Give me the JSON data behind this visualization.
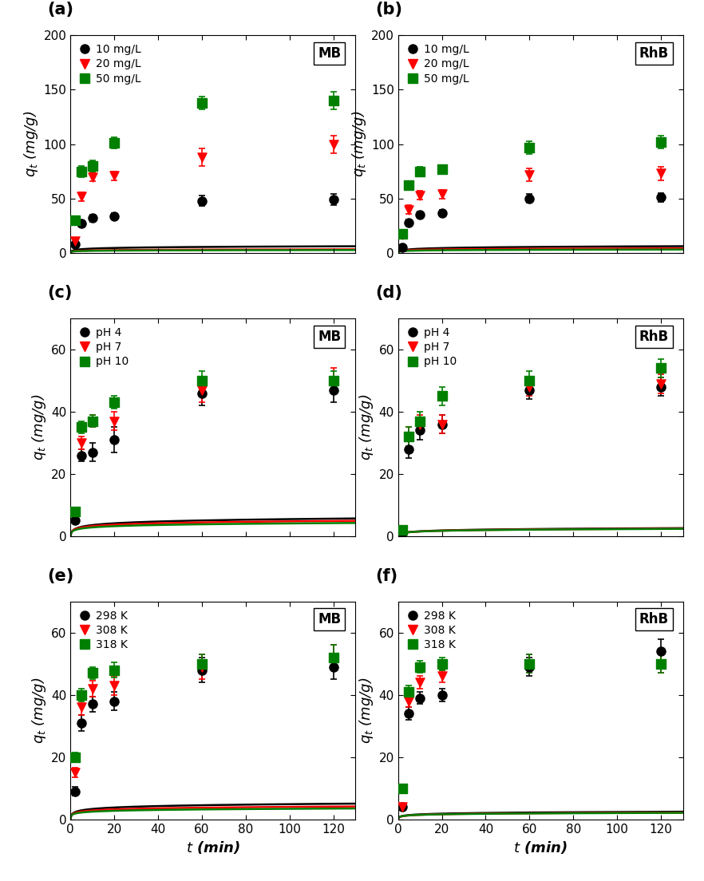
{
  "panels": [
    {
      "label": "(a)",
      "tag": "MB",
      "ylim": [
        0,
        200
      ],
      "yticks": [
        0,
        50,
        100,
        150,
        200
      ],
      "ylabel": "$q_t$ (mg/g)",
      "show_xlabel": false,
      "series": [
        {
          "name": "10 mg/L",
          "color": "black",
          "marker": "o",
          "t": [
            2,
            5,
            10,
            20,
            60,
            120
          ],
          "q": [
            8,
            27,
            32,
            34,
            48,
            49
          ],
          "yerr": [
            1.5,
            3,
            3,
            3,
            5,
            5
          ],
          "elovich_a": 11.5,
          "elovich_b": 1.2
        },
        {
          "name": "20 mg/L",
          "color": "red",
          "marker": "v",
          "t": [
            2,
            5,
            10,
            20,
            60,
            120
          ],
          "q": [
            11,
            52,
            70,
            71,
            88,
            100
          ],
          "yerr": [
            2,
            4,
            4,
            4,
            8,
            8
          ],
          "elovich_a": 17.0,
          "elovich_b": 2.5
        },
        {
          "name": "50 mg/L",
          "color": "green",
          "marker": "s",
          "t": [
            2,
            5,
            10,
            20,
            60,
            120
          ],
          "q": [
            30,
            75,
            80,
            101,
            138,
            140
          ],
          "yerr": [
            3,
            5,
            5,
            5,
            6,
            8
          ],
          "elovich_a": 38.0,
          "elovich_b": 3.5
        }
      ]
    },
    {
      "label": "(b)",
      "tag": "RhB",
      "ylim": [
        0,
        200
      ],
      "yticks": [
        0,
        50,
        100,
        150,
        200
      ],
      "ylabel": "$q_t$ (mg/g)",
      "show_xlabel": false,
      "series": [
        {
          "name": "10 mg/L",
          "color": "black",
          "marker": "o",
          "t": [
            2,
            5,
            10,
            20,
            60,
            120
          ],
          "q": [
            5,
            28,
            35,
            37,
            50,
            51
          ],
          "yerr": [
            1,
            3,
            3,
            3,
            4,
            4
          ],
          "elovich_a": 7.0,
          "elovich_b": 1.1
        },
        {
          "name": "20 mg/L",
          "color": "red",
          "marker": "v",
          "t": [
            2,
            5,
            10,
            20,
            60,
            120
          ],
          "q": [
            17,
            40,
            53,
            54,
            72,
            73
          ],
          "yerr": [
            2,
            4,
            4,
            4,
            6,
            6
          ],
          "elovich_a": 20.0,
          "elovich_b": 2.0
        },
        {
          "name": "50 mg/L",
          "color": "green",
          "marker": "s",
          "t": [
            2,
            5,
            10,
            20,
            60,
            120
          ],
          "q": [
            18,
            62,
            75,
            77,
            97,
            102
          ],
          "yerr": [
            2,
            4,
            4,
            4,
            6,
            6
          ],
          "elovich_a": 25.0,
          "elovich_b": 2.8
        }
      ]
    },
    {
      "label": "(c)",
      "tag": "MB",
      "ylim": [
        0,
        70
      ],
      "yticks": [
        0,
        20,
        40,
        60
      ],
      "ylabel": "$q_t$ (mg/g)",
      "show_xlabel": false,
      "series": [
        {
          "name": "pH 4",
          "color": "black",
          "marker": "o",
          "t": [
            2,
            5,
            10,
            20,
            60,
            120
          ],
          "q": [
            5,
            26,
            27,
            31,
            46,
            47
          ],
          "yerr": [
            1,
            2,
            3,
            4,
            4,
            4
          ],
          "elovich_a": 6.0,
          "elovich_b": 1.2
        },
        {
          "name": "pH 7",
          "color": "red",
          "marker": "v",
          "t": [
            2,
            5,
            10,
            20,
            60,
            120
          ],
          "q": [
            8,
            30,
            37,
            37,
            47,
            50
          ],
          "yerr": [
            1,
            2,
            2,
            3,
            4,
            4
          ],
          "elovich_a": 8.5,
          "elovich_b": 1.5
        },
        {
          "name": "pH 10",
          "color": "green",
          "marker": "s",
          "t": [
            2,
            5,
            10,
            20,
            60,
            120
          ],
          "q": [
            8,
            35,
            37,
            43,
            50,
            50
          ],
          "yerr": [
            1,
            2,
            2,
            2,
            3,
            3
          ],
          "elovich_a": 9.0,
          "elovich_b": 1.8
        }
      ]
    },
    {
      "label": "(d)",
      "tag": "RhB",
      "ylim": [
        0,
        70
      ],
      "yticks": [
        0,
        20,
        40,
        60
      ],
      "ylabel": "$q_t$ (mg/g)",
      "show_xlabel": false,
      "series": [
        {
          "name": "pH 4",
          "color": "black",
          "marker": "o",
          "t": [
            2,
            5,
            10,
            20,
            60,
            120
          ],
          "q": [
            1,
            28,
            34,
            36,
            47,
            48
          ],
          "yerr": [
            1,
            3,
            3,
            3,
            3,
            3
          ],
          "elovich_a": 2.0,
          "elovich_b": 2.5
        },
        {
          "name": "pH 7",
          "color": "red",
          "marker": "v",
          "t": [
            2,
            5,
            10,
            20,
            60,
            120
          ],
          "q": [
            2,
            32,
            36,
            36,
            48,
            49
          ],
          "yerr": [
            1,
            3,
            3,
            3,
            3,
            3
          ],
          "elovich_a": 2.5,
          "elovich_b": 2.8
        },
        {
          "name": "pH 10",
          "color": "green",
          "marker": "s",
          "t": [
            2,
            5,
            10,
            20,
            60,
            120
          ],
          "q": [
            2,
            32,
            37,
            45,
            50,
            54
          ],
          "yerr": [
            1,
            3,
            3,
            3,
            3,
            3
          ],
          "elovich_a": 3.0,
          "elovich_b": 3.0
        }
      ]
    },
    {
      "label": "(e)",
      "tag": "MB",
      "ylim": [
        0,
        70
      ],
      "yticks": [
        0,
        20,
        40,
        60
      ],
      "ylabel": "$q_t$ (mg/g)",
      "show_xlabel": true,
      "series": [
        {
          "name": "298 K",
          "color": "black",
          "marker": "o",
          "t": [
            2,
            5,
            10,
            20,
            60,
            120
          ],
          "q": [
            9,
            31,
            37,
            38,
            48,
            49
          ],
          "yerr": [
            1.5,
            2.5,
            2.5,
            3,
            4,
            4
          ],
          "elovich_a": 10.0,
          "elovich_b": 1.5
        },
        {
          "name": "308 K",
          "color": "red",
          "marker": "v",
          "t": [
            2,
            5,
            10,
            20,
            60,
            120
          ],
          "q": [
            15,
            36,
            42,
            43,
            49,
            52
          ],
          "yerr": [
            1.5,
            2.5,
            2.5,
            3,
            4,
            4
          ],
          "elovich_a": 15.0,
          "elovich_b": 2.0
        },
        {
          "name": "318 K",
          "color": "green",
          "marker": "s",
          "t": [
            2,
            5,
            10,
            20,
            60,
            120
          ],
          "q": [
            20,
            40,
            47,
            48,
            50,
            52
          ],
          "yerr": [
            1.5,
            2,
            2,
            2.5,
            3,
            4
          ],
          "elovich_a": 19.0,
          "elovich_b": 2.5
        }
      ]
    },
    {
      "label": "(f)",
      "tag": "RhB",
      "ylim": [
        0,
        70
      ],
      "yticks": [
        0,
        20,
        40,
        60
      ],
      "ylabel": "$q_t$ (mg/g)",
      "show_xlabel": true,
      "series": [
        {
          "name": "298 K",
          "color": "black",
          "marker": "o",
          "t": [
            2,
            5,
            10,
            20,
            60,
            120
          ],
          "q": [
            4,
            34,
            39,
            40,
            49,
            54
          ],
          "yerr": [
            1,
            2,
            2,
            2,
            3,
            4
          ],
          "elovich_a": 4.0,
          "elovich_b": 3.0
        },
        {
          "name": "308 K",
          "color": "red",
          "marker": "v",
          "t": [
            2,
            5,
            10,
            20,
            60,
            120
          ],
          "q": [
            4,
            38,
            44,
            46,
            50,
            50
          ],
          "yerr": [
            1,
            2,
            2,
            2,
            3,
            3
          ],
          "elovich_a": 4.5,
          "elovich_b": 3.5
        },
        {
          "name": "318 K",
          "color": "green",
          "marker": "s",
          "t": [
            2,
            5,
            10,
            20,
            60,
            120
          ],
          "q": [
            10,
            41,
            49,
            50,
            50,
            50
          ],
          "yerr": [
            1,
            2,
            2,
            2,
            3,
            3
          ],
          "elovich_a": 8.0,
          "elovich_b": 4.0
        }
      ]
    }
  ],
  "xlim": [
    0,
    130
  ],
  "xticks": [
    0,
    20,
    40,
    60,
    80,
    100,
    120
  ],
  "xlabel": "$t$ (min)",
  "marker_size": 8,
  "line_width": 1.8,
  "cap_size": 3,
  "elinewidth": 1.2,
  "tag_fontsize": 12,
  "label_fontsize": 13,
  "tick_fontsize": 11,
  "legend_fontsize": 10
}
